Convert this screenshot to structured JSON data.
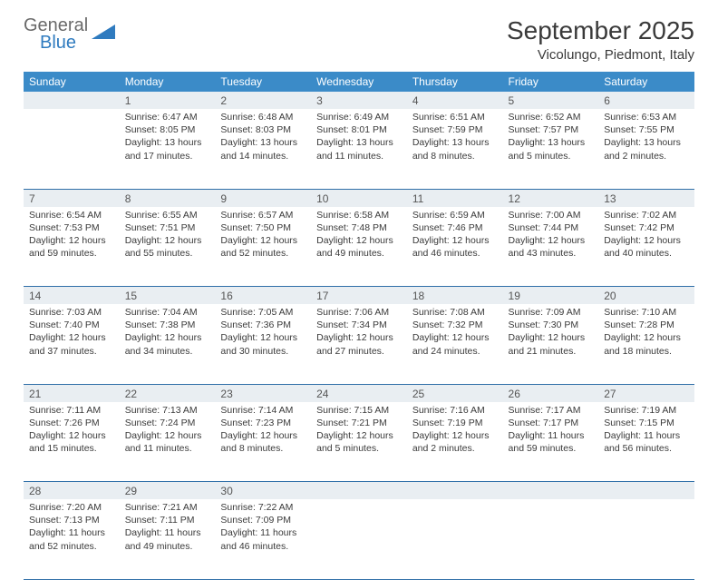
{
  "logo": {
    "general": "General",
    "blue": "Blue"
  },
  "title": "September 2025",
  "location": "Vicolungo, Piedmont, Italy",
  "colors": {
    "header_bg": "#3b8bc8",
    "header_text": "#ffffff",
    "daynum_bg": "#e9eef2",
    "cell_border": "#2f6fa8",
    "text": "#3a3a3a",
    "logo_gray": "#6a6a6a",
    "logo_blue": "#2f7bbf"
  },
  "weekdays": [
    "Sunday",
    "Monday",
    "Tuesday",
    "Wednesday",
    "Thursday",
    "Friday",
    "Saturday"
  ],
  "weeks": [
    [
      null,
      {
        "n": "1",
        "sr": "6:47 AM",
        "ss": "8:05 PM",
        "dl": "13 hours and 17 minutes."
      },
      {
        "n": "2",
        "sr": "6:48 AM",
        "ss": "8:03 PM",
        "dl": "13 hours and 14 minutes."
      },
      {
        "n": "3",
        "sr": "6:49 AM",
        "ss": "8:01 PM",
        "dl": "13 hours and 11 minutes."
      },
      {
        "n": "4",
        "sr": "6:51 AM",
        "ss": "7:59 PM",
        "dl": "13 hours and 8 minutes."
      },
      {
        "n": "5",
        "sr": "6:52 AM",
        "ss": "7:57 PM",
        "dl": "13 hours and 5 minutes."
      },
      {
        "n": "6",
        "sr": "6:53 AM",
        "ss": "7:55 PM",
        "dl": "13 hours and 2 minutes."
      }
    ],
    [
      {
        "n": "7",
        "sr": "6:54 AM",
        "ss": "7:53 PM",
        "dl": "12 hours and 59 minutes."
      },
      {
        "n": "8",
        "sr": "6:55 AM",
        "ss": "7:51 PM",
        "dl": "12 hours and 55 minutes."
      },
      {
        "n": "9",
        "sr": "6:57 AM",
        "ss": "7:50 PM",
        "dl": "12 hours and 52 minutes."
      },
      {
        "n": "10",
        "sr": "6:58 AM",
        "ss": "7:48 PM",
        "dl": "12 hours and 49 minutes."
      },
      {
        "n": "11",
        "sr": "6:59 AM",
        "ss": "7:46 PM",
        "dl": "12 hours and 46 minutes."
      },
      {
        "n": "12",
        "sr": "7:00 AM",
        "ss": "7:44 PM",
        "dl": "12 hours and 43 minutes."
      },
      {
        "n": "13",
        "sr": "7:02 AM",
        "ss": "7:42 PM",
        "dl": "12 hours and 40 minutes."
      }
    ],
    [
      {
        "n": "14",
        "sr": "7:03 AM",
        "ss": "7:40 PM",
        "dl": "12 hours and 37 minutes."
      },
      {
        "n": "15",
        "sr": "7:04 AM",
        "ss": "7:38 PM",
        "dl": "12 hours and 34 minutes."
      },
      {
        "n": "16",
        "sr": "7:05 AM",
        "ss": "7:36 PM",
        "dl": "12 hours and 30 minutes."
      },
      {
        "n": "17",
        "sr": "7:06 AM",
        "ss": "7:34 PM",
        "dl": "12 hours and 27 minutes."
      },
      {
        "n": "18",
        "sr": "7:08 AM",
        "ss": "7:32 PM",
        "dl": "12 hours and 24 minutes."
      },
      {
        "n": "19",
        "sr": "7:09 AM",
        "ss": "7:30 PM",
        "dl": "12 hours and 21 minutes."
      },
      {
        "n": "20",
        "sr": "7:10 AM",
        "ss": "7:28 PM",
        "dl": "12 hours and 18 minutes."
      }
    ],
    [
      {
        "n": "21",
        "sr": "7:11 AM",
        "ss": "7:26 PM",
        "dl": "12 hours and 15 minutes."
      },
      {
        "n": "22",
        "sr": "7:13 AM",
        "ss": "7:24 PM",
        "dl": "12 hours and 11 minutes."
      },
      {
        "n": "23",
        "sr": "7:14 AM",
        "ss": "7:23 PM",
        "dl": "12 hours and 8 minutes."
      },
      {
        "n": "24",
        "sr": "7:15 AM",
        "ss": "7:21 PM",
        "dl": "12 hours and 5 minutes."
      },
      {
        "n": "25",
        "sr": "7:16 AM",
        "ss": "7:19 PM",
        "dl": "12 hours and 2 minutes."
      },
      {
        "n": "26",
        "sr": "7:17 AM",
        "ss": "7:17 PM",
        "dl": "11 hours and 59 minutes."
      },
      {
        "n": "27",
        "sr": "7:19 AM",
        "ss": "7:15 PM",
        "dl": "11 hours and 56 minutes."
      }
    ],
    [
      {
        "n": "28",
        "sr": "7:20 AM",
        "ss": "7:13 PM",
        "dl": "11 hours and 52 minutes."
      },
      {
        "n": "29",
        "sr": "7:21 AM",
        "ss": "7:11 PM",
        "dl": "11 hours and 49 minutes."
      },
      {
        "n": "30",
        "sr": "7:22 AM",
        "ss": "7:09 PM",
        "dl": "11 hours and 46 minutes."
      },
      null,
      null,
      null,
      null
    ]
  ],
  "labels": {
    "sunrise": "Sunrise:",
    "sunset": "Sunset:",
    "daylight": "Daylight:"
  }
}
